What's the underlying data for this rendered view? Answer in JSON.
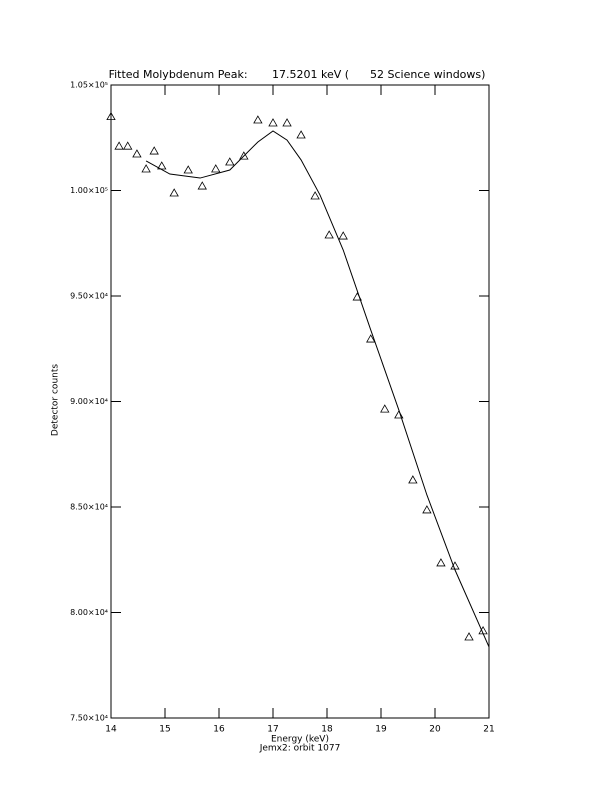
{
  "chart_data": {
    "type": "scatter",
    "title": "Fitted Molybdenum Peak:       17.5201 keV (      52 Science windows)",
    "x_label": "Energy (keV)",
    "y_label": "Detector counts",
    "subtitle": "Jemx2: orbit 1077",
    "xlim": [
      14,
      21
    ],
    "xticks": [
      14,
      15,
      16,
      17,
      18,
      19,
      20,
      21
    ],
    "ylim": [
      75000,
      105000
    ],
    "yticks": [
      {
        "value": 75000,
        "label": "7.50×10⁴"
      },
      {
        "value": 80000,
        "label": "8.00×10⁴"
      },
      {
        "value": 85000,
        "label": "8.50×10⁴"
      },
      {
        "value": 90000,
        "label": "9.00×10⁴"
      },
      {
        "value": 95000,
        "label": "9.50×10⁴"
      },
      {
        "value": 100000,
        "label": "1.00×10⁵"
      },
      {
        "value": 105000,
        "label": "1.05×10⁵"
      }
    ],
    "series": [
      {
        "marker": "triangle",
        "color": "#000000",
        "x": [
          14.0,
          14.15,
          14.31,
          14.48,
          14.65,
          14.8,
          14.94,
          15.17,
          15.43,
          15.69,
          15.94,
          16.2,
          16.46,
          16.72,
          17.0,
          17.26,
          17.52,
          17.78,
          18.04,
          18.3,
          18.56,
          18.81,
          19.07,
          19.33,
          19.59,
          19.85,
          20.11,
          20.37,
          20.63,
          20.89
        ],
        "values": [
          103500,
          102100,
          102100,
          101730,
          101020,
          101870,
          101160,
          99880,
          100970,
          100210,
          101020,
          101350,
          101630,
          103340,
          103200,
          103200,
          102630,
          99740,
          97890,
          97840,
          94950,
          92960,
          89640,
          89360,
          86280,
          84860,
          82350,
          82200,
          78840,
          79130
        ]
      },
      {
        "marker": "line",
        "color": "#000000",
        "x": [
          14.65,
          15.09,
          15.65,
          16.2,
          16.72,
          17.0,
          17.26,
          17.52,
          17.87,
          18.3,
          18.81,
          19.33,
          19.85,
          20.37,
          21.0
        ],
        "values": [
          101400,
          100780,
          100590,
          100970,
          102300,
          102820,
          102390,
          101450,
          99790,
          97180,
          93390,
          89600,
          85570,
          82020,
          78370
        ]
      }
    ]
  }
}
